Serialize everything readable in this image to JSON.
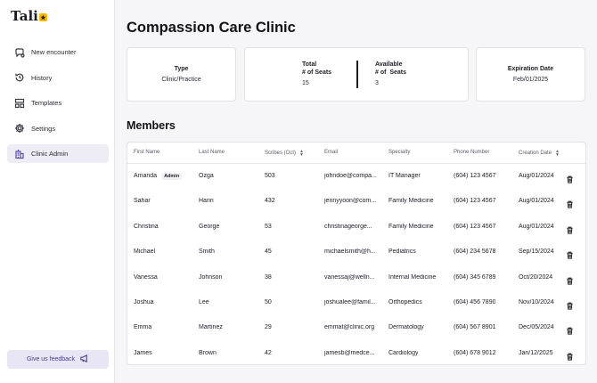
{
  "app": {
    "logo": "Tali"
  },
  "sidebar": {
    "items": [
      {
        "label": "New encounter",
        "icon": "chat-bubble-icon"
      },
      {
        "label": "History",
        "icon": "history-icon"
      },
      {
        "label": "Templates",
        "icon": "templates-icon"
      },
      {
        "label": "Settings",
        "icon": "gear-icon"
      },
      {
        "label": "Clinic Admin",
        "icon": "building-icon",
        "active": true
      }
    ],
    "feedback_label": "Give us feedback"
  },
  "page": {
    "title": "Compassion Care Clinic"
  },
  "cards": {
    "type": {
      "label": "Type",
      "value": "Clinic/Practice"
    },
    "total_seats": {
      "label_line1": "Total",
      "label_line2": "# of Seats",
      "value": "15"
    },
    "available_seats": {
      "label_line1": "Available",
      "label_line2": "# of  Seats",
      "value": "3"
    },
    "expiration": {
      "label": "Expiration Date",
      "value": "Feb/01/2025"
    }
  },
  "members": {
    "title": "Members",
    "columns": {
      "first_name": "First Name",
      "last_name": "Last Name",
      "scribes": "Scribes (Oct)",
      "email": "Email",
      "specialty": "Specialty",
      "phone": "Phone Number",
      "creation_date": "Creation Date"
    },
    "rows": [
      {
        "first": "Amanda",
        "badge": "Admin",
        "last": "Ozga",
        "scribes": "503",
        "email": "johndoe@compa...",
        "specialty": "IT Manager",
        "phone": "(604) 123 4567",
        "date": "Aug/01/2024"
      },
      {
        "first": "Sahar",
        "badge": "",
        "last": "Hariri",
        "scribes": "432",
        "email": "jennyyoon@com...",
        "specialty": "Family Medicine",
        "phone": "(604) 123 4567",
        "date": "Aug/01/2024"
      },
      {
        "first": "Christina",
        "badge": "",
        "last": "George",
        "scribes": "53",
        "email": "christinageorge...",
        "specialty": "Family Medicine",
        "phone": "(604) 123 4567",
        "date": "Aug/01/2024"
      },
      {
        "first": "Michael",
        "badge": "",
        "last": "Smith",
        "scribes": "45",
        "email": "michaelsmith@h...",
        "specialty": "Pediatrics",
        "phone": "(604) 234 5678",
        "date": "Sep/15/2024"
      },
      {
        "first": "Vanessa",
        "badge": "",
        "last": "Johnson",
        "scribes": "38",
        "email": "vanessaj@welln...",
        "specialty": "Internal Medicine",
        "phone": "(604) 345 6789",
        "date": "Oct/20/2024"
      },
      {
        "first": "Joshua",
        "badge": "",
        "last": "Lee",
        "scribes": "50",
        "email": "joshualee@famil...",
        "specialty": "Orthopedics",
        "phone": "(604) 456 7890",
        "date": "Nov/10/2024"
      },
      {
        "first": "Emma",
        "badge": "",
        "last": "Martinez",
        "scribes": "29",
        "email": "emmat@clinic.org",
        "specialty": "Dermatology",
        "phone": "(604) 567 8901",
        "date": "Dec/05/2024"
      },
      {
        "first": "James",
        "badge": "",
        "last": "Brown",
        "scribes": "42",
        "email": "jamesb@medce...",
        "specialty": "Cardiology",
        "phone": "(604) 678 9012",
        "date": "Jan/12/2025"
      }
    ]
  },
  "colors": {
    "accent": "#5b4fa8",
    "logo_star": "#f5b800",
    "feedback_bg": "#e8e5f5"
  }
}
